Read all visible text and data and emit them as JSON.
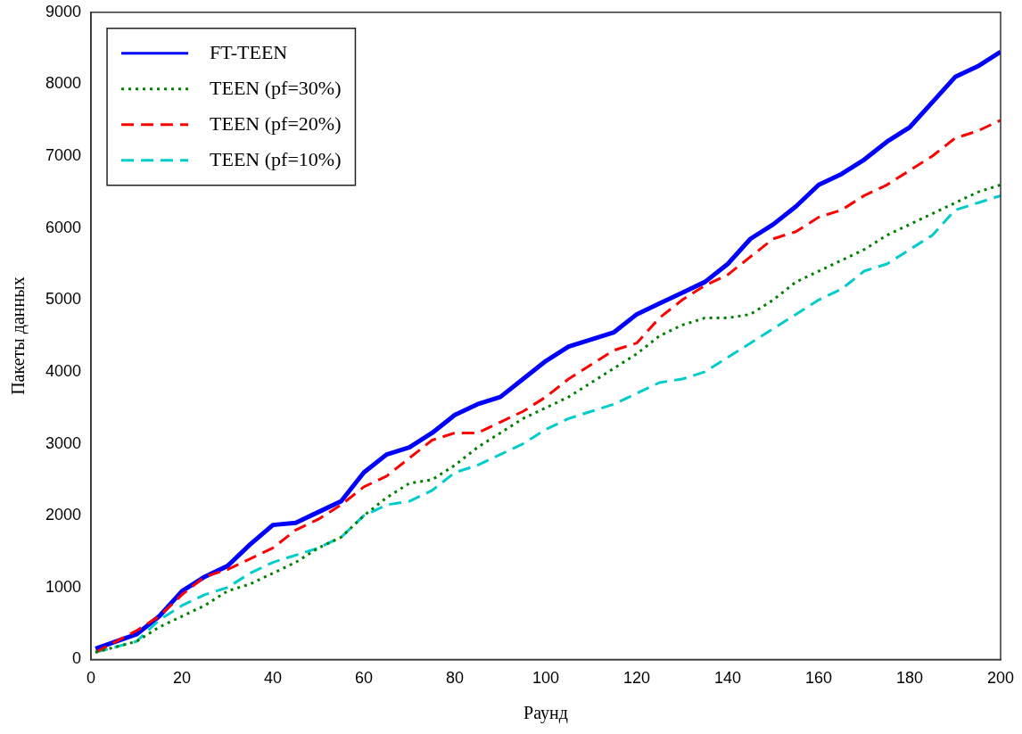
{
  "chart_data": {
    "type": "line",
    "xlabel": "Раунд",
    "ylabel": "Пакеты данных",
    "x": [
      1,
      10,
      15,
      20,
      25,
      30,
      35,
      40,
      45,
      50,
      55,
      60,
      65,
      70,
      75,
      80,
      85,
      90,
      95,
      100,
      105,
      110,
      115,
      120,
      125,
      130,
      135,
      140,
      145,
      150,
      155,
      160,
      165,
      170,
      175,
      180,
      185,
      190,
      195,
      200
    ],
    "series": [
      {
        "name": "FT-TEEN",
        "color": "#0000ff",
        "line_style": "solid",
        "values": [
          150,
          350,
          600,
          950,
          1150,
          1300,
          1600,
          1870,
          1900,
          2050,
          2200,
          2600,
          2850,
          2950,
          3150,
          3400,
          3550,
          3650,
          3900,
          4150,
          4350,
          4450,
          4550,
          4800,
          4950,
          5100,
          5250,
          5500,
          5850,
          6050,
          6300,
          6600,
          6750,
          6950,
          7200,
          7400,
          7750,
          8100,
          8250,
          8450
        ]
      },
      {
        "name": "TEEN (pf=30%)",
        "color": "#008000",
        "line_style": "dotted",
        "values": [
          100,
          250,
          450,
          600,
          750,
          950,
          1050,
          1200,
          1350,
          1550,
          1700,
          2000,
          2250,
          2450,
          2500,
          2700,
          2950,
          3150,
          3350,
          3500,
          3650,
          3850,
          4050,
          4250,
          4500,
          4650,
          4750,
          4750,
          4800,
          5000,
          5250,
          5400,
          5550,
          5700,
          5900,
          6050,
          6200,
          6350,
          6500,
          6600
        ]
      },
      {
        "name": "TEEN (pf=20%)",
        "color": "#ff0000",
        "line_style": "dashed",
        "values": [
          100,
          400,
          600,
          900,
          1150,
          1250,
          1400,
          1550,
          1800,
          1950,
          2150,
          2400,
          2550,
          2800,
          3050,
          3150,
          3150,
          3300,
          3450,
          3650,
          3900,
          4100,
          4300,
          4400,
          4750,
          5000,
          5200,
          5350,
          5600,
          5850,
          5950,
          6150,
          6250,
          6450,
          6600,
          6800,
          7000,
          7250,
          7350,
          7500
        ]
      },
      {
        "name": "TEEN (pf=10%)",
        "color": "#00cccc",
        "line_style": "dashed",
        "values": [
          100,
          250,
          550,
          750,
          900,
          1000,
          1200,
          1350,
          1450,
          1550,
          1700,
          2000,
          2150,
          2200,
          2350,
          2600,
          2700,
          2850,
          3000,
          3200,
          3350,
          3450,
          3550,
          3700,
          3850,
          3900,
          4000,
          4200,
          4400,
          4600,
          4800,
          5000,
          5150,
          5400,
          5500,
          5700,
          5900,
          6250,
          6350,
          6450
        ]
      }
    ],
    "xlim": [
      0,
      200
    ],
    "xticks": [
      0,
      20,
      40,
      60,
      80,
      100,
      120,
      140,
      160,
      180,
      200
    ],
    "ylim": [
      0,
      9000
    ],
    "yticks": [
      0,
      1000,
      2000,
      3000,
      4000,
      5000,
      6000,
      7000,
      8000,
      9000
    ],
    "grid": false,
    "legend": "top left",
    "marker": "none"
  }
}
